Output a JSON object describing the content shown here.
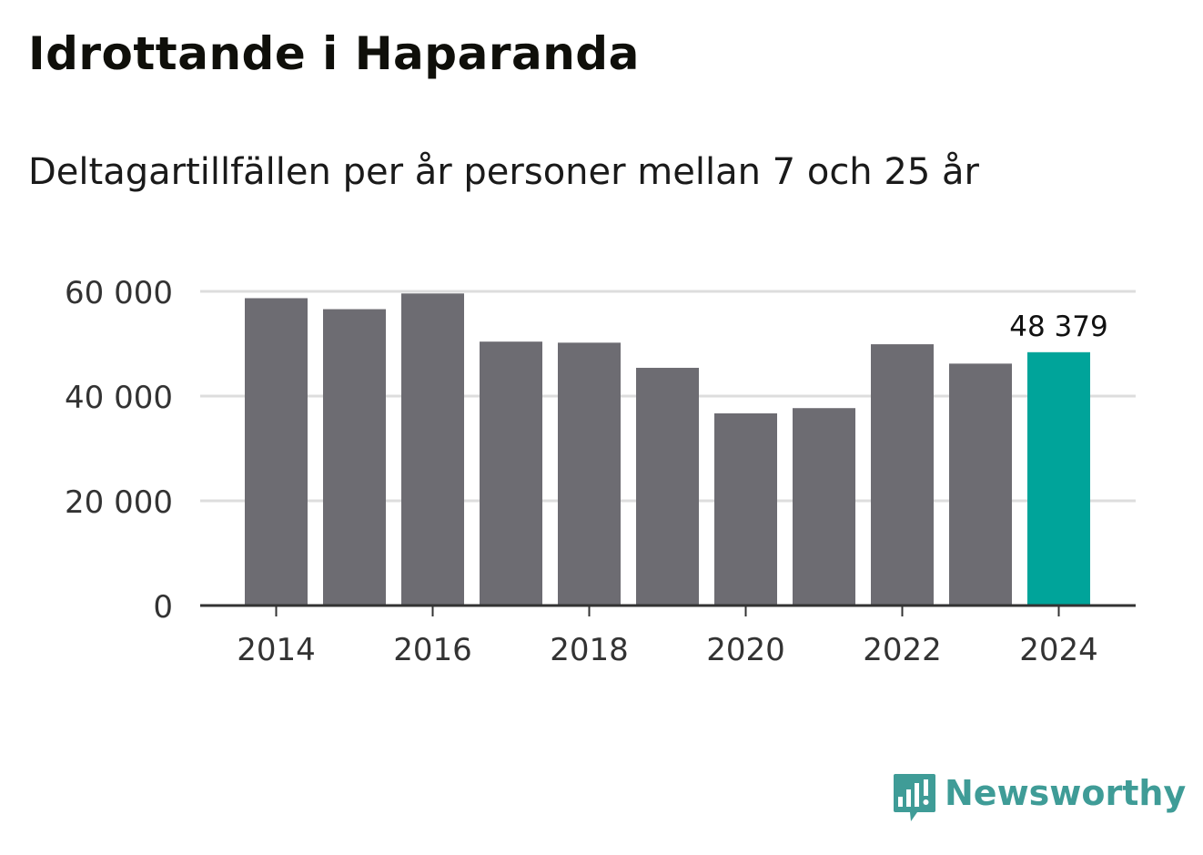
{
  "header": {
    "title": "Idrottande i Haparanda",
    "subtitle": "Deltagartillfällen per år personer mellan 7 och 25 år"
  },
  "brand": {
    "name": "Newsworthy",
    "logo_icon": "newsworthy-logo-icon",
    "color": "#3f9c97"
  },
  "colors": {
    "bar": "#6d6c72",
    "highlight": "#00a49a",
    "grid": "#dddddd",
    "axis": "#333333",
    "tick_text": "#333333"
  },
  "chart_data": {
    "type": "bar",
    "title": "Idrottande i Haparanda",
    "subtitle": "Deltagartillfällen per år personer mellan 7 och 25 år",
    "categories": [
      "2014",
      "2015",
      "2016",
      "2017",
      "2018",
      "2019",
      "2020",
      "2021",
      "2022",
      "2023",
      "2024"
    ],
    "values": [
      58700,
      56600,
      59600,
      50400,
      50200,
      45400,
      36700,
      37700,
      49900,
      46200,
      48379
    ],
    "highlight_index": 10,
    "highlight_label": "48 379",
    "xlabel": "",
    "ylabel": "",
    "ylim": [
      0,
      60000
    ],
    "yticks": [
      0,
      20000,
      40000,
      60000
    ],
    "ytick_labels": [
      "0",
      "20 000",
      "40 000",
      "60 000"
    ],
    "xtick_labels": [
      "2014",
      "",
      "2016",
      "",
      "2018",
      "",
      "2020",
      "",
      "2022",
      "",
      "2024"
    ],
    "grid": true
  }
}
